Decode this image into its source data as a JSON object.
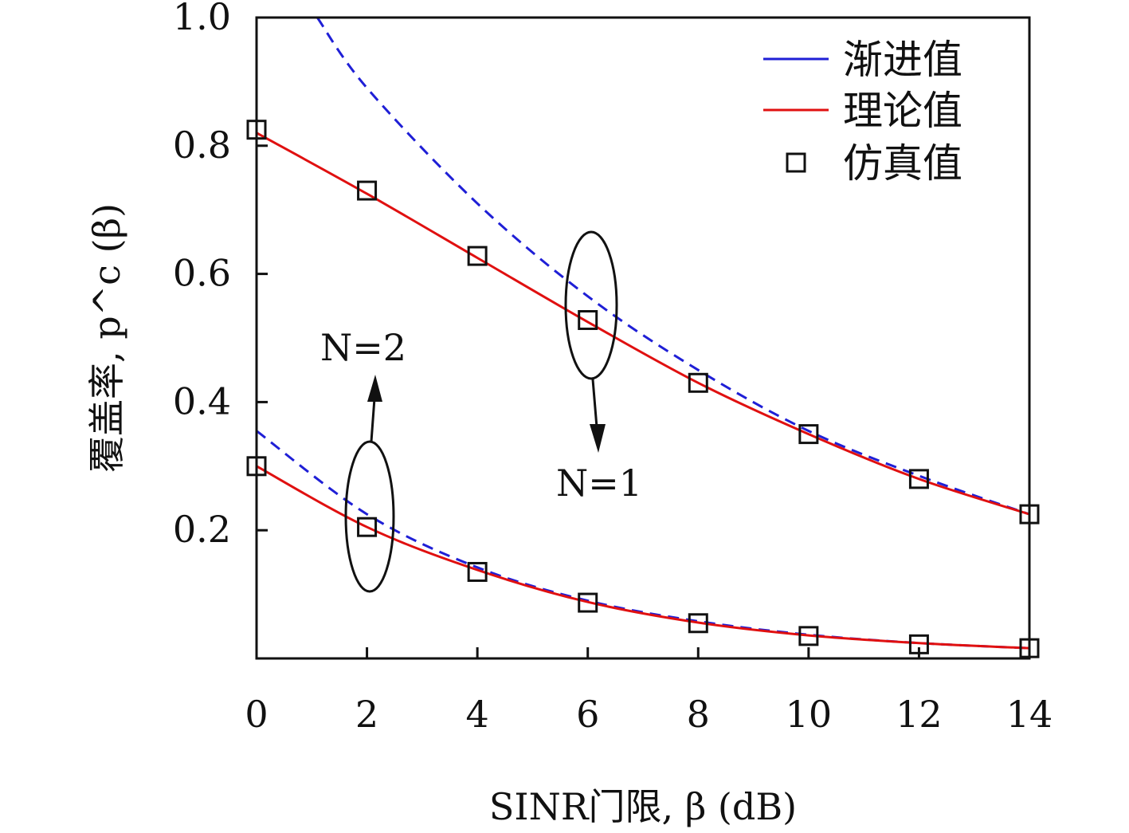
{
  "chart_data": {
    "type": "line",
    "xlabel": "SINR门限, β (dB)",
    "ylabel": "覆盖率, p^c (β)",
    "xlim": [
      0,
      14
    ],
    "ylim": [
      0,
      1.0
    ],
    "x_ticks": [
      0,
      2,
      4,
      6,
      8,
      10,
      12,
      14
    ],
    "x_tick_labels": [
      "0",
      "2",
      "4",
      "6",
      "8",
      "10",
      "12",
      "14"
    ],
    "y_ticks": [
      0.2,
      0.4,
      0.6,
      0.8,
      1.0
    ],
    "y_tick_labels": [
      "0.2",
      "0.4",
      "0.6",
      "0.8",
      "1.0"
    ],
    "grid": false,
    "legend": {
      "placement": "top-right",
      "entries": [
        {
          "label": "渐进值",
          "color": "#1f1fd6",
          "style": "line"
        },
        {
          "label": "理论值",
          "color": "#e01010",
          "style": "line"
        },
        {
          "label": "仿真值",
          "color": "#111111",
          "style": "square-marker"
        }
      ]
    },
    "series": [
      {
        "group": "N=1",
        "kind": "asymptotic",
        "color": "#1f1fd6",
        "dash": true,
        "x": [
          1.1,
          2,
          4,
          6,
          8,
          10,
          12,
          14
        ],
        "values": [
          1.0,
          0.89,
          0.71,
          0.565,
          0.45,
          0.355,
          0.285,
          0.225
        ]
      },
      {
        "group": "N=1",
        "kind": "theory",
        "color": "#e01010",
        "dash": false,
        "x": [
          0,
          2,
          4,
          6,
          8,
          10,
          12,
          14
        ],
        "values": [
          0.82,
          0.725,
          0.625,
          0.525,
          0.43,
          0.35,
          0.28,
          0.225
        ]
      },
      {
        "group": "N=1",
        "kind": "simulation",
        "color": "#111111",
        "x": [
          0,
          2,
          4,
          6,
          8,
          10,
          12,
          14
        ],
        "values": [
          0.825,
          0.73,
          0.628,
          0.528,
          0.43,
          0.35,
          0.28,
          0.225
        ]
      },
      {
        "group": "N=2",
        "kind": "asymptotic",
        "color": "#1f1fd6",
        "dash": true,
        "x": [
          0,
          2,
          4,
          6,
          8,
          10,
          12,
          14
        ],
        "values": [
          0.355,
          0.225,
          0.142,
          0.09,
          0.058,
          0.037,
          0.024,
          0.016
        ]
      },
      {
        "group": "N=2",
        "kind": "theory",
        "color": "#e01010",
        "dash": false,
        "x": [
          0,
          2,
          4,
          6,
          8,
          10,
          12,
          14
        ],
        "values": [
          0.3,
          0.205,
          0.138,
          0.088,
          0.056,
          0.036,
          0.024,
          0.016
        ]
      },
      {
        "group": "N=2",
        "kind": "simulation",
        "color": "#111111",
        "x": [
          0,
          2,
          4,
          6,
          8,
          10,
          12,
          14
        ],
        "values": [
          0.3,
          0.205,
          0.135,
          0.087,
          0.055,
          0.035,
          0.022,
          0.016
        ]
      }
    ],
    "annotations": [
      {
        "text": "N=2",
        "near_x": 2,
        "near_y": 0.2
      },
      {
        "text": "N=1",
        "near_x": 6,
        "near_y": 0.55
      }
    ]
  }
}
